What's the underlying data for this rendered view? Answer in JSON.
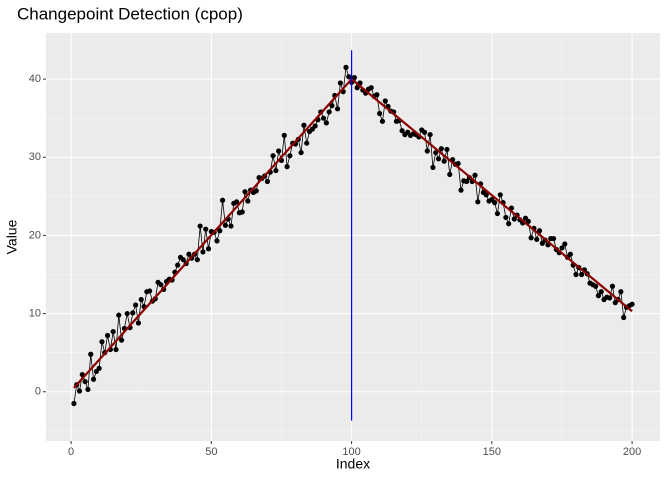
{
  "chart_data": {
    "type": "line",
    "title": "Changepoint Detection (cpop)",
    "x_label": "Index",
    "y_label": "Value",
    "x": [
      1,
      2,
      3,
      4,
      5,
      6,
      7,
      8,
      9,
      10,
      11,
      12,
      13,
      14,
      15,
      16,
      17,
      18,
      19,
      20,
      21,
      22,
      23,
      24,
      25,
      26,
      27,
      28,
      29,
      30,
      31,
      32,
      33,
      34,
      35,
      36,
      37,
      38,
      39,
      40,
      41,
      42,
      43,
      44,
      45,
      46,
      47,
      48,
      49,
      50,
      51,
      52,
      53,
      54,
      55,
      56,
      57,
      58,
      59,
      60,
      61,
      62,
      63,
      64,
      65,
      66,
      67,
      68,
      69,
      70,
      71,
      72,
      73,
      74,
      75,
      76,
      77,
      78,
      79,
      80,
      81,
      82,
      83,
      84,
      85,
      86,
      87,
      88,
      89,
      90,
      91,
      92,
      93,
      94,
      95,
      96,
      97,
      98,
      99,
      100,
      101,
      102,
      103,
      104,
      105,
      106,
      107,
      108,
      109,
      110,
      111,
      112,
      113,
      114,
      115,
      116,
      117,
      118,
      119,
      120,
      121,
      122,
      123,
      124,
      125,
      126,
      127,
      128,
      129,
      130,
      131,
      132,
      133,
      134,
      135,
      136,
      137,
      138,
      139,
      140,
      141,
      142,
      143,
      144,
      145,
      146,
      147,
      148,
      149,
      150,
      151,
      152,
      153,
      154,
      155,
      156,
      157,
      158,
      159,
      160,
      161,
      162,
      163,
      164,
      165,
      166,
      167,
      168,
      169,
      170,
      171,
      172,
      173,
      174,
      175,
      176,
      177,
      178,
      179,
      180,
      181,
      182,
      183,
      184,
      185,
      186,
      187,
      188,
      189,
      190,
      191,
      192,
      193,
      194,
      195,
      196,
      197,
      198,
      199,
      200
    ],
    "values": [
      -1.5,
      0.9,
      0.1,
      2.2,
      1.3,
      0.3,
      4.8,
      1.6,
      2.6,
      3.0,
      6.4,
      5.0,
      7.2,
      5.4,
      7.7,
      5.4,
      9.8,
      6.6,
      8.1,
      10.0,
      8.2,
      10.1,
      11.1,
      8.8,
      11.8,
      10.9,
      12.8,
      12.9,
      11.6,
      11.9,
      14.0,
      13.7,
      13.1,
      14.1,
      14.4,
      14.3,
      15.3,
      16.2,
      17.2,
      16.9,
      16.4,
      17.6,
      17.1,
      17.6,
      16.9,
      21.2,
      17.9,
      20.8,
      18.3,
      20.5,
      20.4,
      19.3,
      20.6,
      24.5,
      21.3,
      22.1,
      21.2,
      24.1,
      24.3,
      22.9,
      23.0,
      25.6,
      24.4,
      25.8,
      25.5,
      25.7,
      27.4,
      27.3,
      27.6,
      26.9,
      28.1,
      30.2,
      28.3,
      30.8,
      29.6,
      32.8,
      28.8,
      30.2,
      31.8,
      31.7,
      32.3,
      30.6,
      34.1,
      31.8,
      33.3,
      33.6,
      34.0,
      34.8,
      35.8,
      35.0,
      34.4,
      35.8,
      36.6,
      37.9,
      36.2,
      39.5,
      38.4,
      41.5,
      40.3,
      39.6,
      40.2,
      38.9,
      39.5,
      38.6,
      38.2,
      38.7,
      38.9,
      37.8,
      38.0,
      35.6,
      34.6,
      37.2,
      36.5,
      35.9,
      35.8,
      34.6,
      34.7,
      33.4,
      32.9,
      33.2,
      32.8,
      33.0,
      32.9,
      32.6,
      33.5,
      33.2,
      30.8,
      32.9,
      28.7,
      30.6,
      29.8,
      31.1,
      29.5,
      31.0,
      27.8,
      29.7,
      29.1,
      29.2,
      25.8,
      27.0,
      26.9,
      27.4,
      26.9,
      27.7,
      24.3,
      26.6,
      25.5,
      25.2,
      24.4,
      24.6,
      24.2,
      22.8,
      25.2,
      24.2,
      22.3,
      21.5,
      23.5,
      22.1,
      22.6,
      22.0,
      21.6,
      22.2,
      21.8,
      19.7,
      20.9,
      19.5,
      20.6,
      19.0,
      19.4,
      18.8,
      19.6,
      19.6,
      18.2,
      17.8,
      18.4,
      18.9,
      17.2,
      17.6,
      16.2,
      15.0,
      15.9,
      15.0,
      15.6,
      15.1,
      13.9,
      13.7,
      13.5,
      12.3,
      12.8,
      11.8,
      12.1,
      12.0,
      13.5,
      11.4,
      11.8,
      12.8,
      9.5,
      10.8,
      11.0,
      11.2
    ],
    "color": "#000000",
    "fit": {
      "x": [
        1,
        100,
        200
      ],
      "values": [
        0.5,
        40,
        10.3
      ],
      "color": "#8b0000"
    },
    "changepoint": {
      "x": 100,
      "y": [
        -3.7,
        43.7
      ],
      "color": "#0000ff"
    },
    "xlim": [
      -8.95,
      209.95
    ],
    "ylim": [
      -6.3,
      45.9
    ],
    "xticks": [
      0,
      50,
      100,
      150,
      200
    ],
    "yticks": [
      0,
      10,
      20,
      30,
      40
    ],
    "xminor": [
      25,
      75,
      125,
      175
    ],
    "yminor": [
      -5,
      5,
      15,
      25,
      35,
      45
    ],
    "grid": true
  }
}
